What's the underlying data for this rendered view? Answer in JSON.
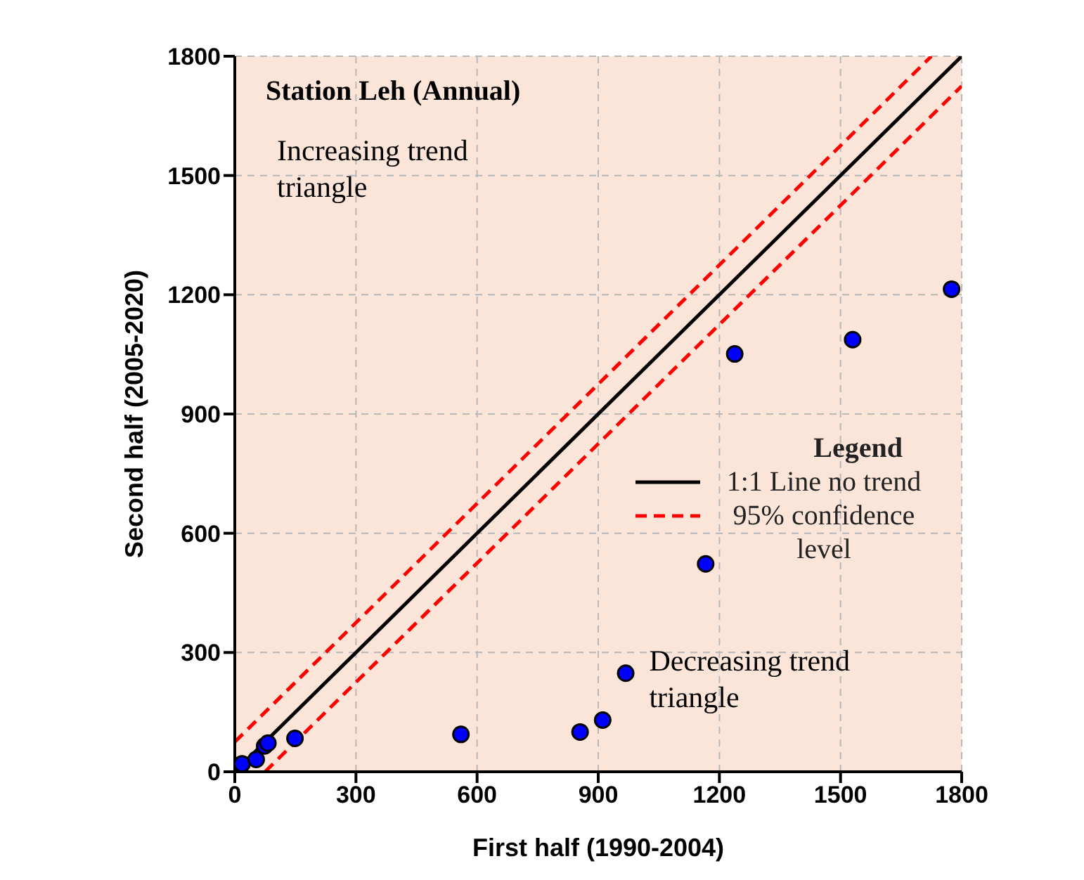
{
  "chart_data": {
    "type": "scatter",
    "title": "Station Leh (Annual)",
    "xlabel": "First half (1990-2004)",
    "ylabel": "Second half (2005-2020)",
    "legend_title": "Legend",
    "annotations": [
      "Increasing trend triangle",
      "Decreasing trend triangle"
    ],
    "x": [
      18,
      53,
      74,
      82,
      149,
      560,
      855,
      911,
      968,
      1166,
      1238,
      1530,
      1775
    ],
    "series": [
      {
        "type": "scatter",
        "color": "#0000ff",
        "marker": "circle",
        "values": [
          20,
          31,
          65,
          72,
          84,
          94,
          100,
          130,
          248,
          523,
          1051,
          1087,
          1214
        ]
      },
      {
        "type": "line",
        "name": "1:1 Line no trend",
        "color": "#000000",
        "line_style": "solid",
        "marker": "none",
        "x": [
          0,
          1800
        ],
        "values": [
          0,
          1800
        ]
      },
      {
        "type": "line",
        "name": "95% confidence level",
        "color": "#ff0000",
        "line_style": "dashed",
        "marker": "none",
        "x": [
          0,
          1725,
          null,
          75,
          1800
        ],
        "values": [
          75,
          1800,
          null,
          0,
          1725
        ]
      }
    ],
    "xlim": [
      0,
      1800
    ],
    "xticks": [
      0,
      300,
      600,
      900,
      1200,
      1500,
      1800
    ],
    "ylim": [
      0,
      1800
    ],
    "yticks": [
      0,
      300,
      600,
      900,
      1200,
      1500,
      1800
    ],
    "grid": true,
    "legend": "right"
  }
}
